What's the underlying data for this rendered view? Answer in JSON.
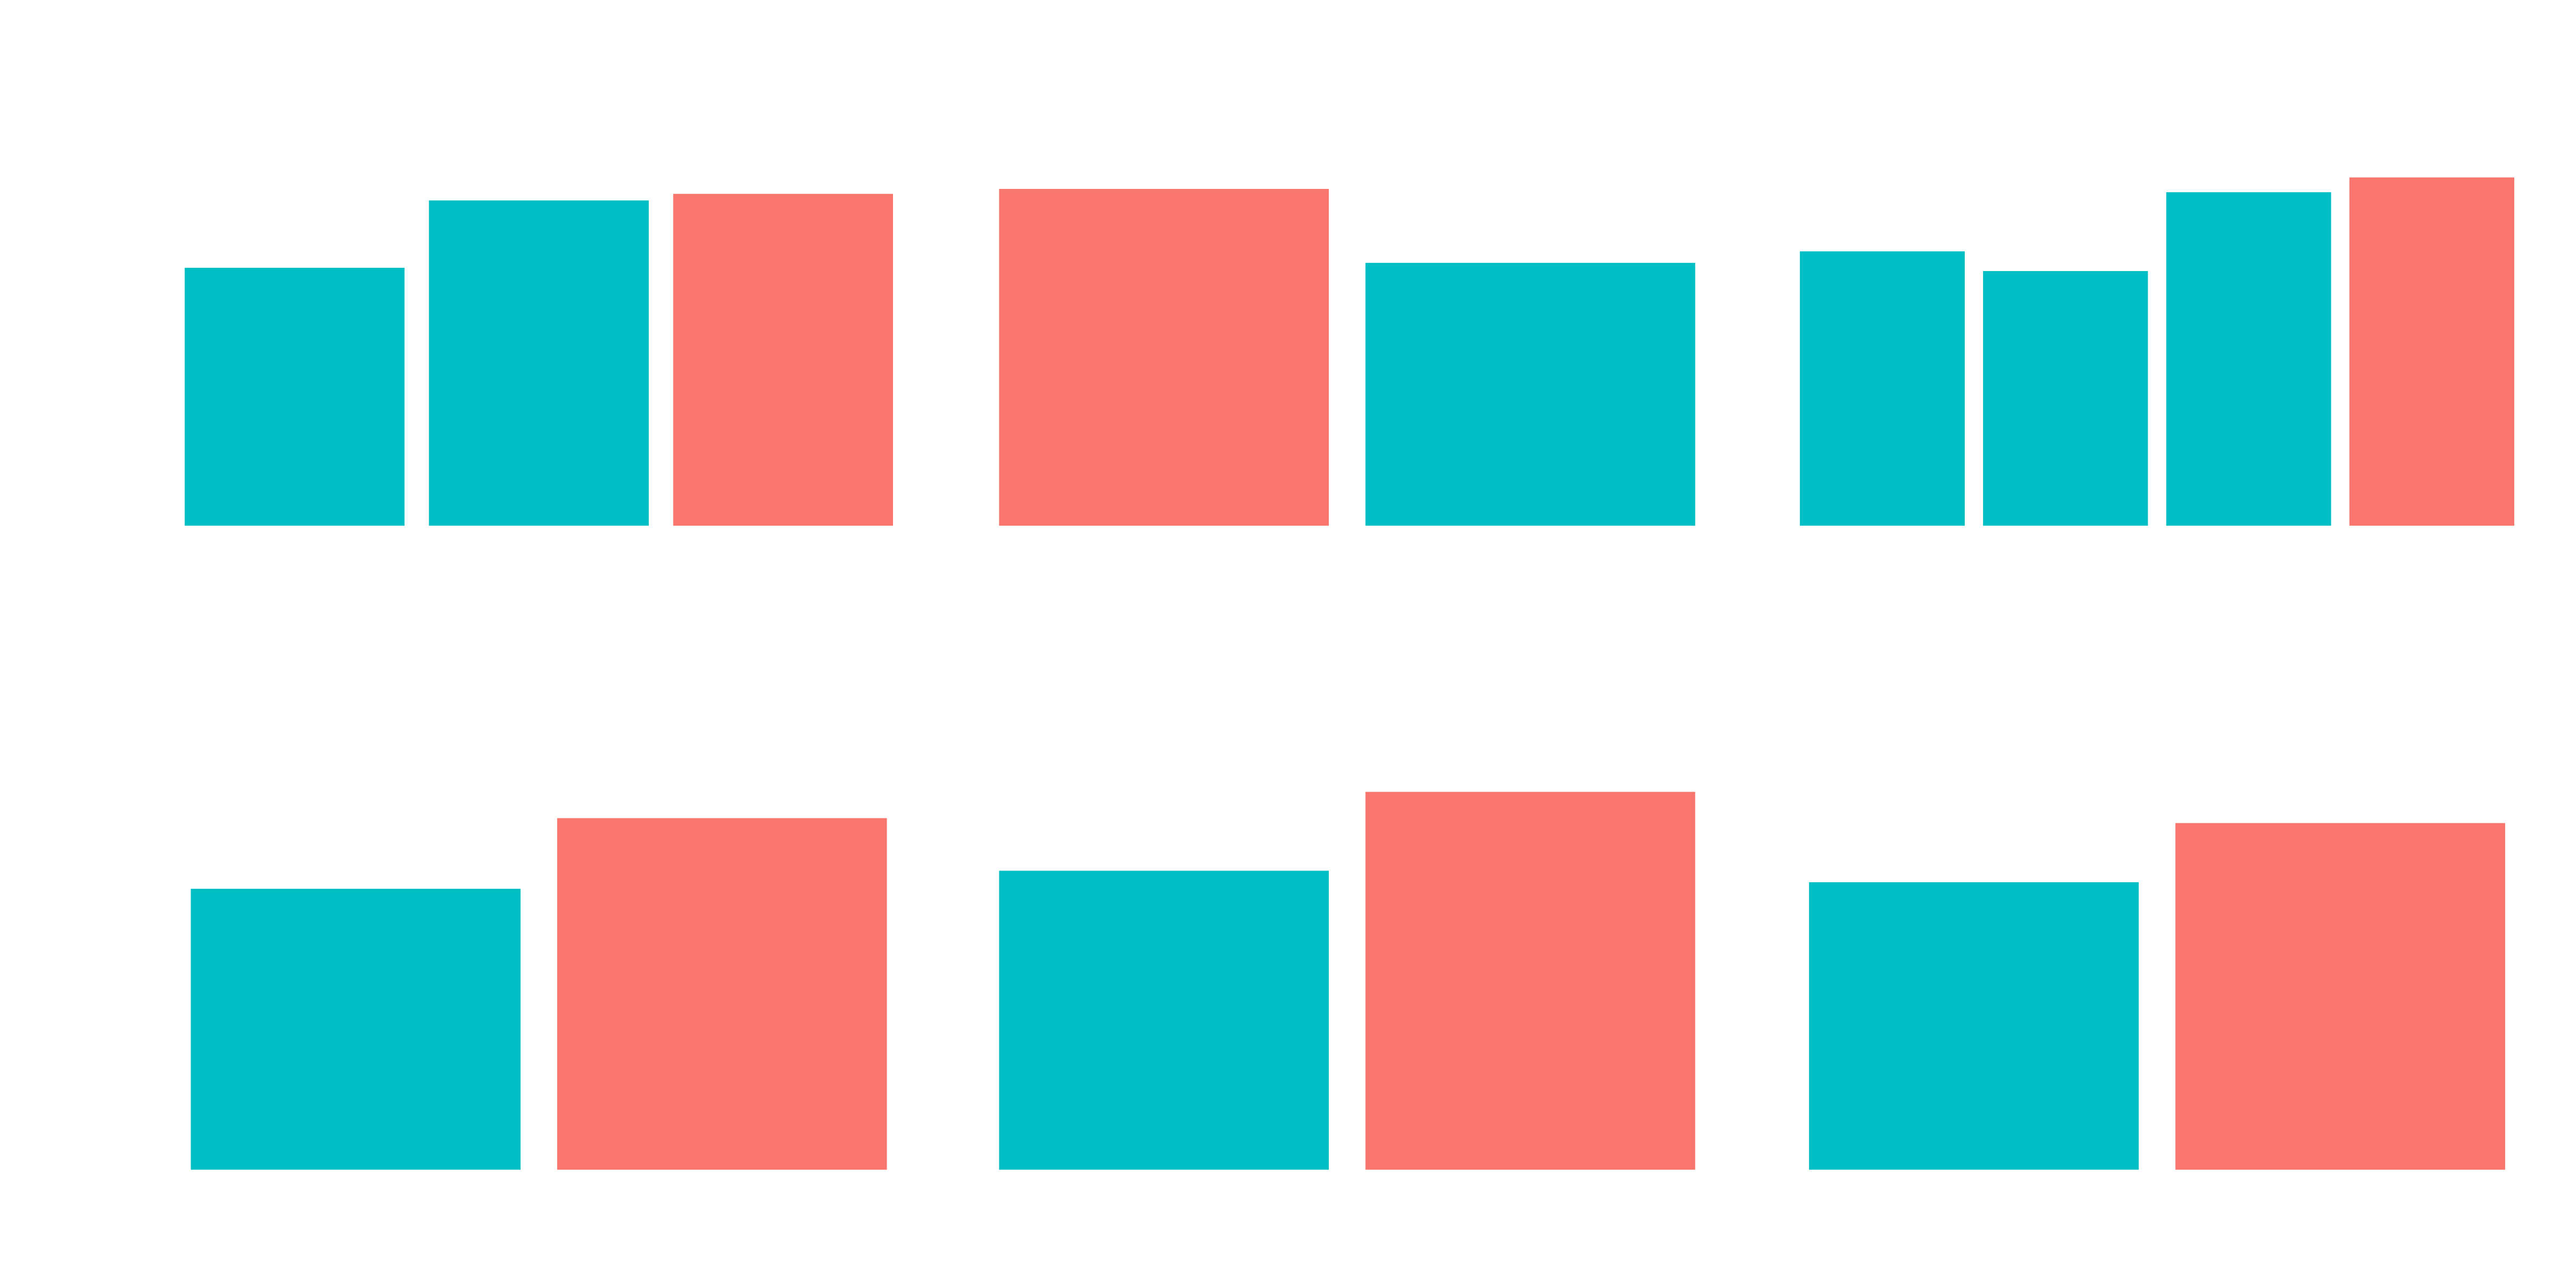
{
  "chart_data": [
    {
      "type": "bar",
      "categories": [
        null,
        null,
        null
      ],
      "values": [
        157,
        198,
        202
      ],
      "colors": [
        "#00bfc4",
        "#00bfc4",
        "#f8766d"
      ],
      "ylim": [
        0,
        320
      ]
    },
    {
      "type": "bar",
      "categories": [
        null,
        null
      ],
      "values": [
        205,
        160
      ],
      "colors": [
        "#f8766d",
        "#00bfc4"
      ],
      "ylim": [
        0,
        320
      ]
    },
    {
      "type": "bar",
      "categories": [
        null,
        null,
        null,
        null
      ],
      "values": [
        167,
        155,
        203,
        212
      ],
      "colors": [
        "#00bfc4",
        "#00bfc4",
        "#00bfc4",
        "#f8766d"
      ],
      "ylim": [
        0,
        320
      ]
    },
    {
      "type": "bar",
      "categories": [
        null,
        null
      ],
      "values": [
        171,
        214
      ],
      "colors": [
        "#00bfc4",
        "#f8766d"
      ],
      "ylim": [
        0,
        320
      ]
    },
    {
      "type": "bar",
      "categories": [
        null,
        null
      ],
      "values": [
        182,
        230
      ],
      "colors": [
        "#00bfc4",
        "#f8766d"
      ],
      "ylim": [
        0,
        320
      ]
    },
    {
      "type": "bar",
      "categories": [
        null,
        null
      ],
      "values": [
        175,
        211
      ],
      "colors": [
        "#00bfc4",
        "#f8766d"
      ],
      "ylim": [
        0,
        320
      ]
    }
  ]
}
